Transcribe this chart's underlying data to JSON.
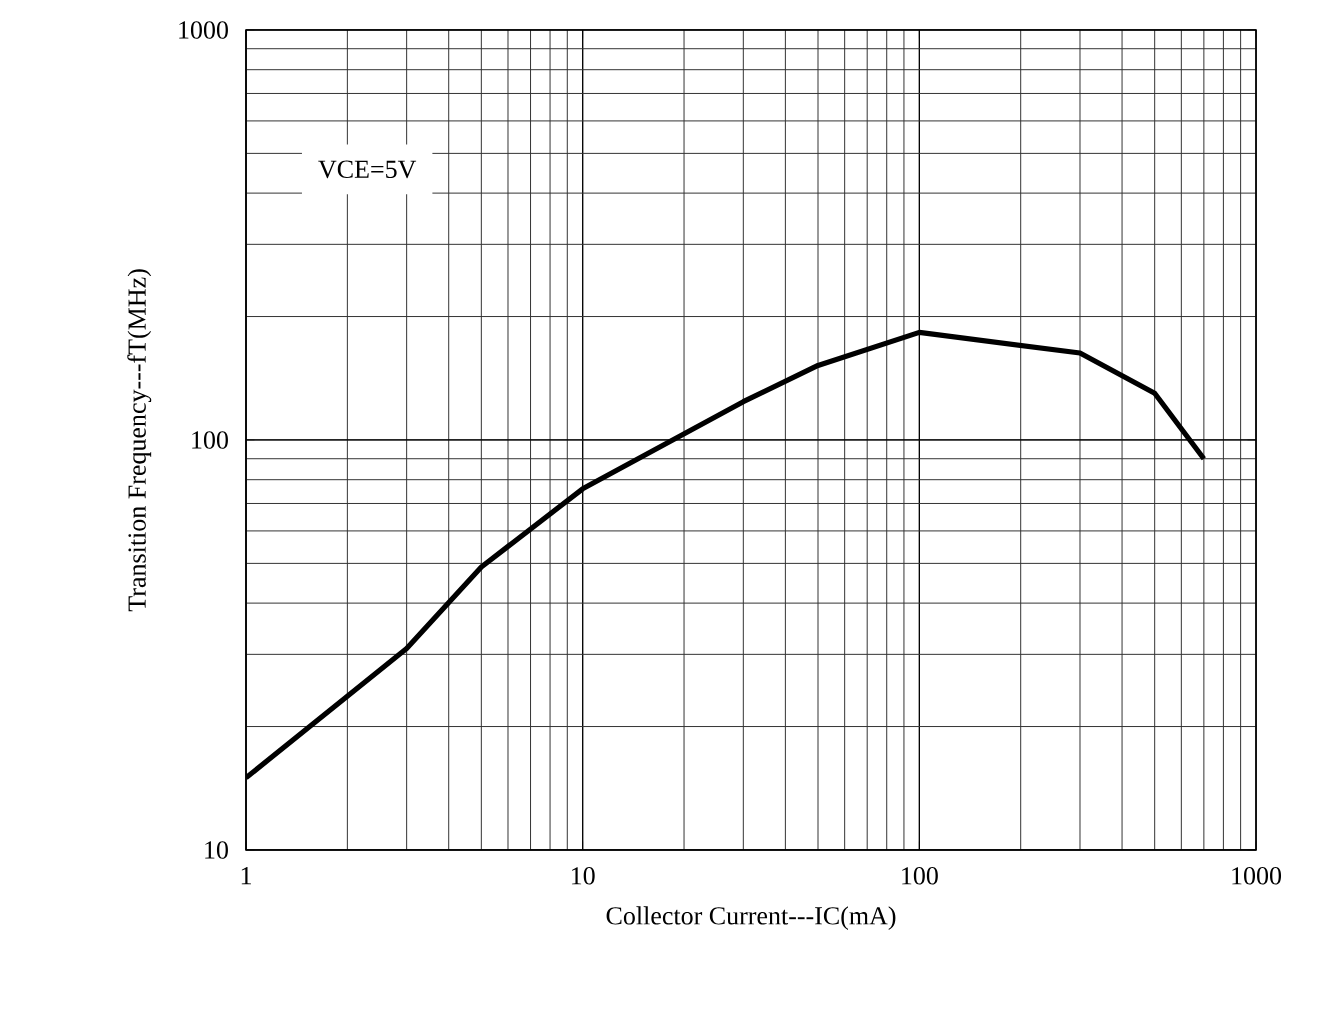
{
  "chart_data": {
    "type": "line",
    "xlabel": "Collector Current---IC(mA)",
    "ylabel": "Transition Frequency---fT(MHz)",
    "annotations": [
      "VCE=5V"
    ],
    "x": [
      1,
      3,
      5,
      10,
      30,
      50,
      100,
      300,
      500,
      700
    ],
    "series": [
      {
        "color": "#000000",
        "values": [
          15,
          31,
          49,
          76,
          124,
          152,
          183,
          163,
          130,
          90
        ]
      }
    ],
    "log": "xy",
    "xlim": [
      1,
      1000
    ],
    "ylim": [
      10,
      1000
    ],
    "xticks": [
      1,
      10,
      100,
      1000
    ],
    "yticks": [
      10,
      100,
      1000
    ],
    "grid": true,
    "line_style": "solid",
    "marker": "none"
  }
}
